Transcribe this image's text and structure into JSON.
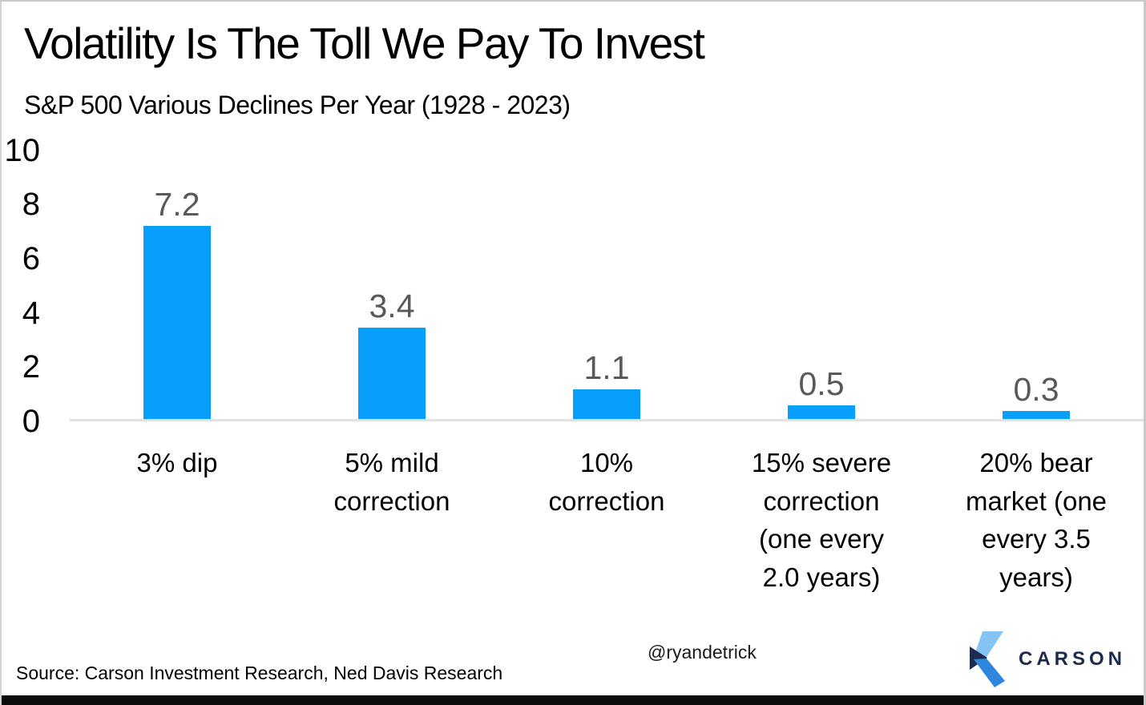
{
  "header": {
    "title": "Volatility Is The Toll We Pay To Invest",
    "subtitle": "S&P 500 Various Declines Per Year (1928 - 2023)"
  },
  "chart_data": {
    "type": "bar",
    "title": "Volatility Is The Toll We Pay To Invest",
    "subtitle": "S&P 500 Various Declines Per Year (1928 - 2023)",
    "categories": [
      "3% dip",
      "5% mild correction",
      "10% correction",
      "15% severe correction (one every 2.0 years)",
      "20% bear market (one every 3.5 years)"
    ],
    "values": [
      7.2,
      3.4,
      1.1,
      0.5,
      0.3
    ],
    "value_labels": [
      "7.2",
      "3.4",
      "1.1",
      "0.5",
      "0.3"
    ],
    "xlabel": "",
    "ylabel": "",
    "ylim": [
      0,
      10
    ],
    "yticks": [
      10,
      8,
      6,
      4,
      2,
      0
    ],
    "grid": false,
    "legend": "none",
    "bar_color": "#089ffc",
    "value_label_color": "#595959",
    "baseline_color": "#e2e2e2"
  },
  "footer": {
    "source": "Source: Carson Investment Research, Ned Davis Research",
    "handle": "@ryandetrick",
    "brand_name": "CARSON"
  },
  "colors": {
    "bar": "#089ffc",
    "value_label": "#595959",
    "baseline": "#e2e2e2",
    "brand_navy": "#1c2b4d",
    "logo_light_blue": "#85c3f2",
    "logo_mid_blue": "#2f86dd",
    "logo_dark_navy": "#1d2c4e",
    "bottom_bar": "#0c0c0c"
  }
}
